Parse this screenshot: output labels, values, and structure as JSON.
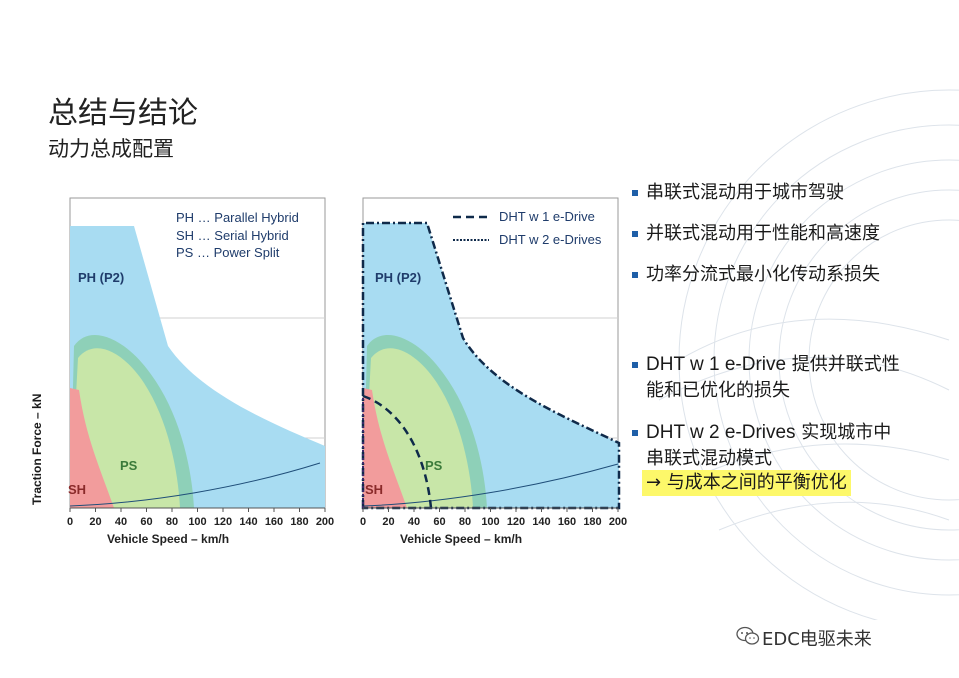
{
  "title": "总结与结论",
  "subtitle": "动力总成配置",
  "charts": {
    "left": {
      "legend": [
        "PH … Parallel Hybrid",
        "SH … Serial Hybrid",
        "PS … Power Split"
      ],
      "region_labels": {
        "ph": "PH (P2)",
        "ps": "PS",
        "sh": "SH"
      }
    },
    "right": {
      "legend": [
        "DHT w 1 e-Drive",
        "DHT w 2 e-Drives"
      ],
      "region_labels": {
        "ph": "PH (P2)",
        "ps": "PS",
        "sh": "SH"
      }
    },
    "x_label": "Vehicle Speed – km/h",
    "y_label": "Traction Force – kN",
    "x_ticks": [
      "0",
      "20",
      "40",
      "60",
      "80",
      "100",
      "120",
      "140",
      "160",
      "180",
      "200"
    ]
  },
  "bullets": [
    {
      "text": "串联式混动用于城市驾驶"
    },
    {
      "text": "并联式混动用于性能和高速度"
    },
    {
      "text": "功率分流式最小化传动系损失"
    },
    {
      "en": "DHT w 1 e-Drive",
      "zh": " 提供并联式性",
      "line2": "能和已优化的损失"
    },
    {
      "en": "DHT w 2 e-Drives",
      "zh": " 实现城市中",
      "line2": "串联式混动模式"
    }
  ],
  "highlight": "→ 与成本之间的平衡优化",
  "footer": "EDC电驱未来",
  "colors": {
    "ph": "#a8dcf2",
    "ps_fill": "#c8e6a8",
    "ps_edge": "#8ed0b8",
    "sh": "#f29c9c",
    "accent": "#1f5fa8",
    "dark": "#0f2a4a",
    "highlight": "#fdf86a"
  }
}
